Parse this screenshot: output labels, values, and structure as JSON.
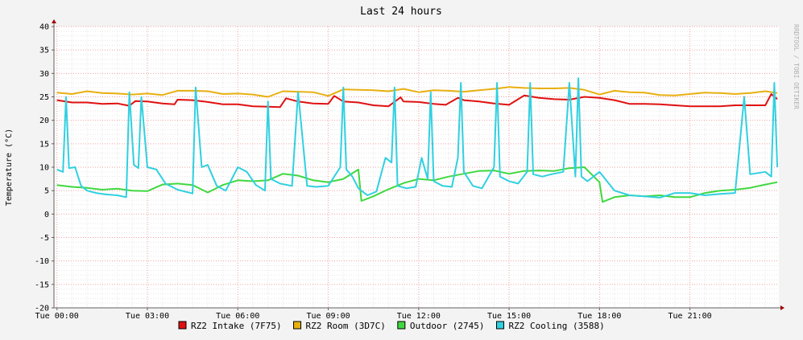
{
  "chart_data": {
    "type": "line",
    "title": "Last 24 hours",
    "ylabel": "Temperature (°C)",
    "watermark": "RRDTOOL / TOBI OETIKER",
    "ylim": [
      -20,
      40
    ],
    "y_ticks": [
      40,
      35,
      30,
      25,
      20,
      15,
      10,
      5,
      0,
      -5,
      -10,
      -15,
      -20
    ],
    "x_ticks": [
      "Tue 00:00",
      "Tue 03:00",
      "Tue 06:00",
      "Tue 09:00",
      "Tue 12:00",
      "Tue 15:00",
      "Tue 18:00",
      "Tue 21:00"
    ],
    "x_unit": "hours",
    "xlim": [
      -0.1,
      23.95
    ],
    "grid": true,
    "legend_position": "bottom",
    "series": [
      {
        "name": "RZ2 Intake (7F75)",
        "color": "#e01010",
        "x": [
          0,
          0.5,
          1,
          1.5,
          2,
          2.4,
          2.6,
          3,
          3.5,
          3.9,
          4,
          4.5,
          5,
          5.5,
          6,
          6.5,
          7,
          7.4,
          7.6,
          8,
          8.5,
          9,
          9.2,
          9.5,
          10,
          10.5,
          11,
          11.4,
          11.5,
          12,
          12.5,
          12.9,
          13.3,
          13.5,
          14,
          14.5,
          15,
          15.5,
          16,
          16.5,
          17,
          17.5,
          18,
          18.5,
          19,
          19.5,
          20,
          20.5,
          21,
          21.5,
          22,
          22.5,
          23,
          23.5,
          23.7,
          23.9
        ],
        "y": [
          24.3,
          23.8,
          23.8,
          23.5,
          23.6,
          23.1,
          24.1,
          24.0,
          23.6,
          23.4,
          24.4,
          24.3,
          23.9,
          23.4,
          23.4,
          23.0,
          22.9,
          22.8,
          24.7,
          24.0,
          23.6,
          23.5,
          25.2,
          24.0,
          23.8,
          23.2,
          23.0,
          24.9,
          24.0,
          23.9,
          23.5,
          23.3,
          24.8,
          24.3,
          24.0,
          23.6,
          23.3,
          25.3,
          24.8,
          24.5,
          24.4,
          25.0,
          24.8,
          24.3,
          23.5,
          23.5,
          23.4,
          23.2,
          23.0,
          23.0,
          23.0,
          23.2,
          23.2,
          23.2,
          25.6,
          24.5
        ]
      },
      {
        "name": "RZ2 Room (3D7C)",
        "color": "#e8b010",
        "x": [
          0,
          0.5,
          1,
          1.5,
          2,
          2.5,
          3,
          3.5,
          4,
          4.5,
          5,
          5.5,
          6,
          6.5,
          7,
          7.5,
          8,
          8.5,
          9,
          9.5,
          10,
          10.5,
          11,
          11.5,
          12,
          12.5,
          13,
          13.5,
          14,
          14.5,
          15,
          15.5,
          16,
          16.5,
          17,
          17.5,
          18,
          18.5,
          19,
          19.5,
          20,
          20.5,
          21,
          21.5,
          22,
          22.5,
          23,
          23.5,
          23.9
        ],
        "y": [
          25.9,
          25.6,
          26.2,
          25.8,
          25.7,
          25.5,
          25.7,
          25.4,
          26.3,
          26.3,
          26.2,
          25.6,
          25.7,
          25.5,
          25.0,
          26.2,
          26.1,
          26.0,
          25.2,
          26.6,
          26.5,
          26.4,
          26.2,
          26.7,
          26.0,
          26.4,
          26.3,
          26.1,
          26.4,
          26.7,
          27.1,
          26.9,
          26.8,
          26.8,
          26.9,
          26.5,
          25.5,
          26.3,
          26.0,
          25.9,
          25.4,
          25.3,
          25.6,
          25.9,
          25.8,
          25.6,
          25.8,
          26.2,
          25.8
        ]
      },
      {
        "name": "Outdoor (2745)",
        "color": "#40d840",
        "x": [
          0,
          0.5,
          1,
          1.5,
          2,
          2.5,
          3,
          3.5,
          4,
          4.5,
          5,
          5.5,
          6,
          6.5,
          7,
          7.5,
          8,
          8.5,
          9,
          9.5,
          10,
          10.1,
          10.5,
          11,
          11.5,
          12,
          12.5,
          13,
          13.5,
          14,
          14.5,
          15,
          15.5,
          16,
          16.5,
          17,
          17.5,
          18,
          18.1,
          18.5,
          19,
          19.5,
          20,
          20.5,
          21,
          21.5,
          22,
          22.5,
          23,
          23.5,
          23.9
        ],
        "y": [
          6.2,
          5.8,
          5.6,
          5.2,
          5.4,
          5.0,
          4.9,
          6.3,
          6.5,
          6.2,
          4.6,
          6.2,
          7.2,
          7.0,
          7.2,
          8.6,
          8.2,
          7.2,
          6.8,
          7.5,
          9.5,
          2.8,
          3.8,
          5.3,
          6.6,
          7.5,
          7.2,
          8.0,
          8.6,
          9.2,
          9.3,
          8.6,
          9.2,
          9.3,
          9.2,
          9.8,
          10.0,
          6.8,
          2.6,
          3.6,
          4.0,
          3.8,
          4.0,
          3.6,
          3.6,
          4.5,
          5.0,
          5.2,
          5.6,
          6.3,
          6.8
        ]
      },
      {
        "name": "RZ2 Cooling (3588)",
        "color": "#30d0e0",
        "x": [
          0,
          0.2,
          0.3,
          0.4,
          0.6,
          0.8,
          1,
          1.3,
          1.6,
          2,
          2.3,
          2.4,
          2.55,
          2.7,
          2.8,
          3,
          3.3,
          3.6,
          4,
          4.3,
          4.5,
          4.6,
          4.8,
          5,
          5.3,
          5.6,
          6,
          6.3,
          6.6,
          6.9,
          7.0,
          7.1,
          7.4,
          7.8,
          8,
          8.3,
          8.6,
          9,
          9.4,
          9.5,
          9.6,
          9.8,
          10,
          10.3,
          10.6,
          10.9,
          11.1,
          11.2,
          11.3,
          11.6,
          11.9,
          12.1,
          12.3,
          12.4,
          12.5,
          12.8,
          13.1,
          13.3,
          13.4,
          13.5,
          13.8,
          14.1,
          14.5,
          14.6,
          14.7,
          15.0,
          15.3,
          15.6,
          15.7,
          15.8,
          16.1,
          16.4,
          16.8,
          17.0,
          17.2,
          17.3,
          17.4,
          17.6,
          17.8,
          18.0,
          18.5,
          19.0,
          19.5,
          20,
          20.5,
          21,
          21.5,
          22,
          22.5,
          22.8,
          23.0,
          23.5,
          23.7,
          23.8,
          23.9
        ],
        "y": [
          9.5,
          9.0,
          25.0,
          9.8,
          10.0,
          6.0,
          5.0,
          4.5,
          4.2,
          4.0,
          3.6,
          26.0,
          10.5,
          9.8,
          25.0,
          10.0,
          9.5,
          6.5,
          5.2,
          4.7,
          4.4,
          27.0,
          10.0,
          10.5,
          6.0,
          5.0,
          10.0,
          9.0,
          6.2,
          5.0,
          24.0,
          7.5,
          6.5,
          6.0,
          26.0,
          6.0,
          5.8,
          6.0,
          10.0,
          27.0,
          9.5,
          8.0,
          5.5,
          4.0,
          4.8,
          12.0,
          11.0,
          27.0,
          6.0,
          5.5,
          5.8,
          12.0,
          7.5,
          26.0,
          7.0,
          6.0,
          5.8,
          12.0,
          28.0,
          9.0,
          6.0,
          5.5,
          10.0,
          28.0,
          8.0,
          7.0,
          6.5,
          9.0,
          28.0,
          8.5,
          8.0,
          8.5,
          9.0,
          28.0,
          8.0,
          29.0,
          8.0,
          7.0,
          8.0,
          9.0,
          5.0,
          4.0,
          3.8,
          3.5,
          4.5,
          4.5,
          4.0,
          4.3,
          4.5,
          25.0,
          8.5,
          9.0,
          8.0,
          28.0,
          10.0
        ]
      }
    ]
  }
}
